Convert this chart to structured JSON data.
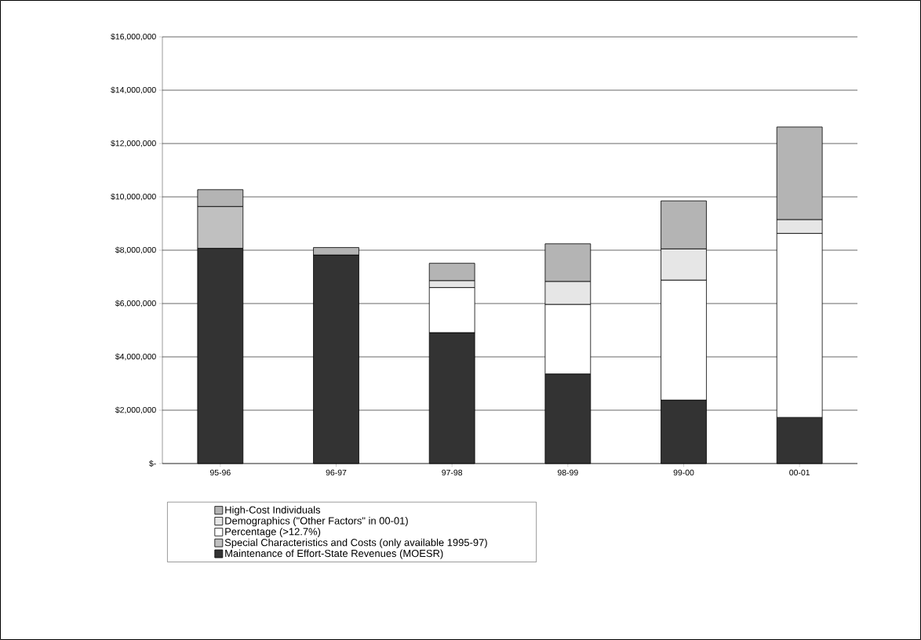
{
  "chart_data": {
    "type": "bar",
    "stacked": true,
    "grid": "y",
    "legend": "bottom",
    "categories": [
      "95-96",
      "96-97",
      "97-98",
      "98-99",
      "99-00",
      "00-01"
    ],
    "series": [
      {
        "name": "Maintenance of Effort-State Revenues (MOESR)",
        "color": "#333333",
        "values": [
          8070000,
          7820000,
          4910000,
          3360000,
          2380000,
          1730000
        ]
      },
      {
        "name": "Special Characteristics and Costs (only available 1995-97)",
        "color": "#c0c0c0",
        "values": [
          1570000,
          null,
          null,
          null,
          null,
          null
        ]
      },
      {
        "name": "Percentage (>12.7%)",
        "color": "#ffffff",
        "values": [
          null,
          null,
          1690000,
          2610000,
          4500000,
          6900000
        ]
      },
      {
        "name": "Demographics (\"Other Factors\" in 00-01)",
        "color": "#e6e6e6",
        "values": [
          null,
          null,
          260000,
          860000,
          1170000,
          520000
        ]
      },
      {
        "name": "High-Cost Individuals",
        "color": "#b4b4b4",
        "values": [
          630000,
          280000,
          650000,
          1410000,
          1800000,
          3470000
        ]
      }
    ],
    "ylim": [
      0,
      16000000
    ],
    "yticks": [
      {
        "value": 0,
        "label": "$-"
      },
      {
        "value": 2000000,
        "label": "$2,000,000"
      },
      {
        "value": 4000000,
        "label": "$4,000,000"
      },
      {
        "value": 6000000,
        "label": "$6,000,000"
      },
      {
        "value": 8000000,
        "label": "$8,000,000"
      },
      {
        "value": 10000000,
        "label": "$10,000,000"
      },
      {
        "value": 12000000,
        "label": "$12,000,000"
      },
      {
        "value": 14000000,
        "label": "$14,000,000"
      },
      {
        "value": 16000000,
        "label": "$16,000,000"
      }
    ]
  }
}
